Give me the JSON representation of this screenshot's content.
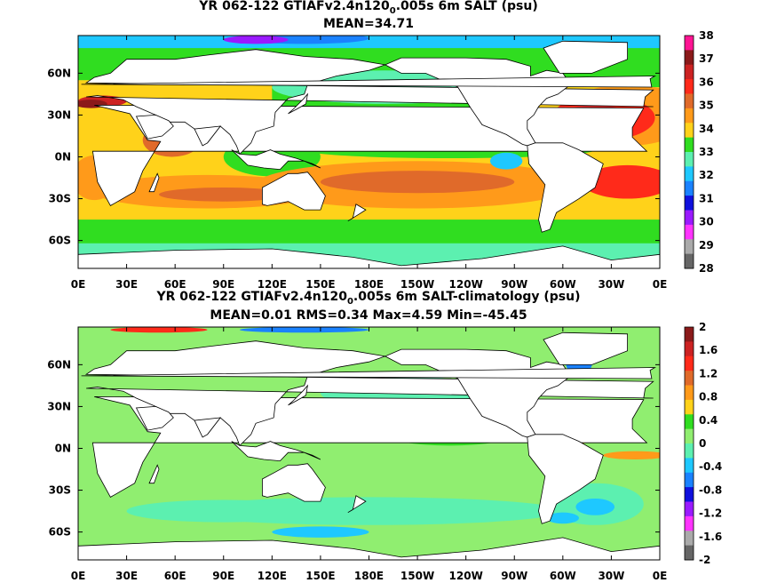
{
  "chart_data": [
    {
      "type": "heatmap",
      "title_pre": "YR 062-122 GTIAFv2.4n120",
      "title_sub": "0",
      "title_post": ".005s 6m SALT (psu)",
      "subtitle": "MEAN=34.71",
      "x_ticks": [
        "0E",
        "30E",
        "60E",
        "90E",
        "120E",
        "150E",
        "180E",
        "150W",
        "120W",
        "90W",
        "60W",
        "30W",
        "0E"
      ],
      "y_ticks": [
        "60N",
        "30N",
        "0N",
        "30S",
        "60S"
      ],
      "colorbar": {
        "labels": [
          "38",
          "37",
          "36",
          "35",
          "34",
          "33",
          "32",
          "31",
          "30",
          "29",
          "28"
        ],
        "colors": [
          "#ff1493",
          "#8b1a1a",
          "#cc2222",
          "#ff2a1a",
          "#e06a2a",
          "#ff9a1a",
          "#ffd21a",
          "#30dd20",
          "#5cf0b0",
          "#1ec8ff",
          "#1a82ff",
          "#1010dd",
          "#9a1aff",
          "#ff33ff",
          "#aaaaaa",
          "#666666"
        ]
      }
    },
    {
      "type": "heatmap",
      "title_pre": "YR 062-122 GTIAFv2.4n120",
      "title_sub": "0",
      "title_post": ".005s 6m SALT-climatology (psu)",
      "subtitle": "MEAN=0.01   RMS=0.34   Max=4.59   Min=-45.45",
      "x_ticks": [
        "0E",
        "30E",
        "60E",
        "90E",
        "120E",
        "150E",
        "180E",
        "150W",
        "120W",
        "90W",
        "60W",
        "30W",
        "0E"
      ],
      "y_ticks": [
        "60N",
        "30N",
        "0N",
        "30S",
        "60S"
      ],
      "colorbar": {
        "labels": [
          "2",
          "1.6",
          "1.2",
          "0.8",
          "0.4",
          "0",
          "-0.4",
          "-0.8",
          "-1.2",
          "-1.6",
          "-2"
        ],
        "colors": [
          "#8b1a1a",
          "#cc2222",
          "#ff2a1a",
          "#e06a2a",
          "#ff9a1a",
          "#ffd21a",
          "#30dd20",
          "#90ee70",
          "#5cf0b0",
          "#1ec8ff",
          "#1a82ff",
          "#1010dd",
          "#9a1aff",
          "#ff33ff",
          "#aaaaaa",
          "#666666"
        ]
      }
    }
  ]
}
